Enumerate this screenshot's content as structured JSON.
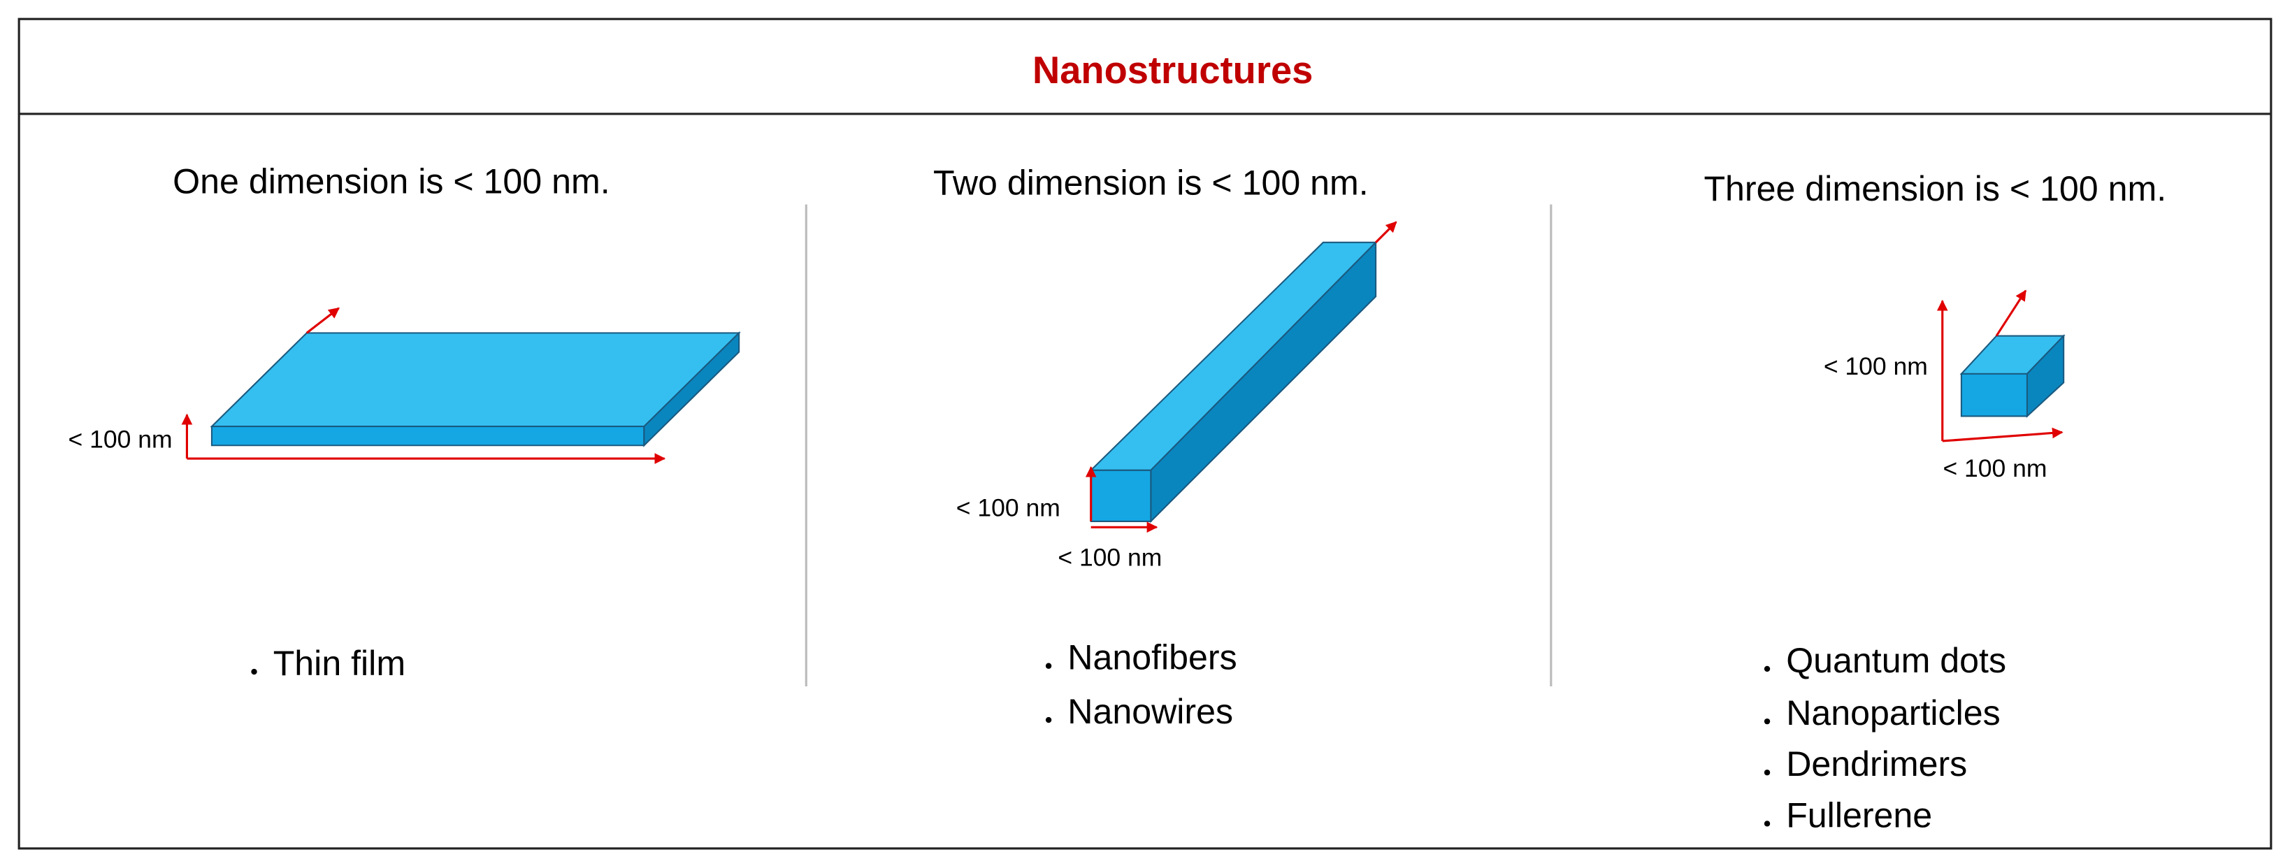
{
  "title": "Nanostructures",
  "columns": [
    {
      "heading": "One dimension is < 100 nm.",
      "dimension_labels": [
        "< 100 nm"
      ],
      "items": [
        "Thin film"
      ]
    },
    {
      "heading": "Two dimension is < 100 nm.",
      "dimension_labels": [
        "< 100 nm",
        "< 100 nm"
      ],
      "items": [
        "Nanofibers",
        "Nanowires"
      ]
    },
    {
      "heading": "Three dimension is < 100 nm.",
      "dimension_labels": [
        "< 100 nm",
        "< 100 nm"
      ],
      "items": [
        "Quantum dots",
        "Nanoparticles",
        "Dendrimers",
        "Fullerene"
      ]
    }
  ]
}
